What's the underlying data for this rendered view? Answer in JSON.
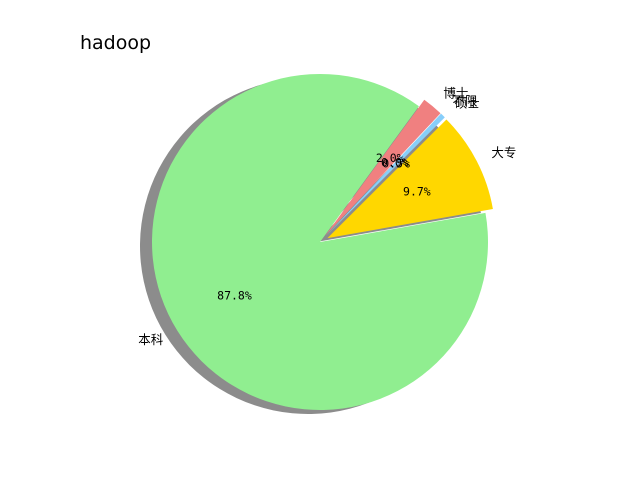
{
  "chart_data": {
    "type": "pie",
    "title": "hadoop",
    "categories": [
      "大专",
      "硕士",
      "不限",
      "博士",
      "本科"
    ],
    "values": [
      9.7,
      0.5,
      0.0,
      2.0,
      87.8
    ],
    "percent_labels": [
      "9.7%",
      "0.5%",
      "0.0%",
      "2.0%",
      "87.8%"
    ],
    "colors": [
      "#ffd700",
      "#87cefa",
      "#6495ed",
      "#f08080",
      "#90ee90"
    ],
    "exploded": [
      true,
      true,
      true,
      true,
      false
    ],
    "start_angle_deg": 10,
    "shadow": true
  }
}
